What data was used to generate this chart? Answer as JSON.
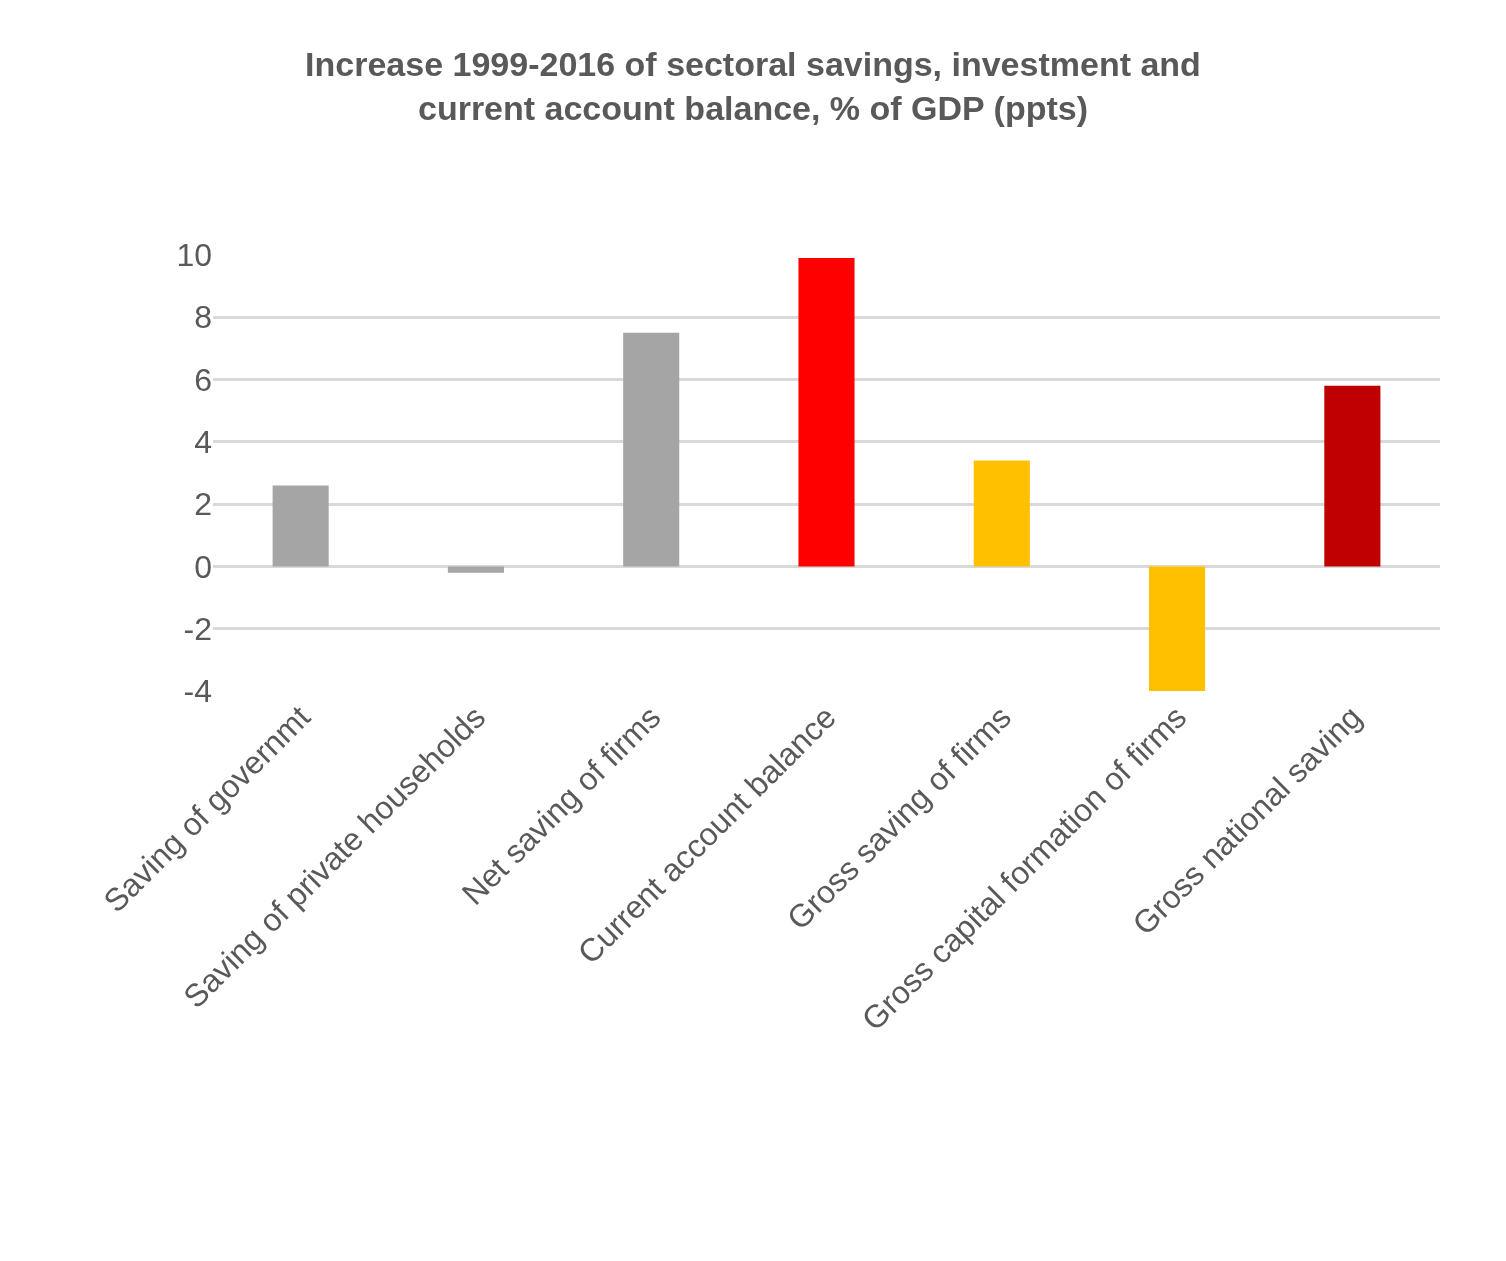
{
  "chart_data": {
    "type": "bar",
    "title": "Increase 1999-2016 of sectoral savings, investment and current account balance, % of GDP (ppts)",
    "categories": [
      "Saving of governmt",
      "Saving of private households",
      "Net saving of firms",
      "Current account balance",
      "Gross saving of firms",
      "Gross capital formation of firms",
      "Gross national saving"
    ],
    "values": [
      2.6,
      -0.2,
      7.5,
      9.9,
      3.4,
      -4.0,
      5.8
    ],
    "colors": [
      "#a5a5a5",
      "#a5a5a5",
      "#a5a5a5",
      "#ff0000",
      "#ffc000",
      "#ffc000",
      "#c00000"
    ],
    "ylim": [
      -4,
      10
    ],
    "yticks": [
      -4,
      -2,
      0,
      2,
      4,
      6,
      8,
      10
    ],
    "grid": "y"
  }
}
